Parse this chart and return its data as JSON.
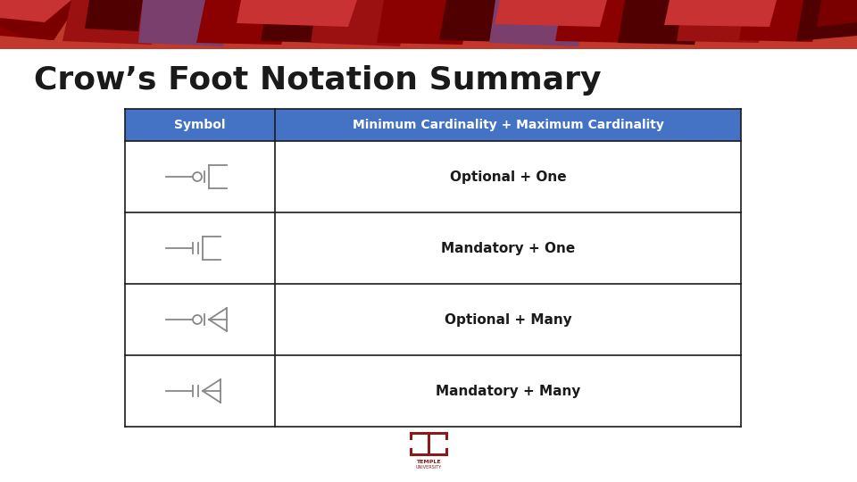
{
  "title": "Crow’s Foot Notation Summary",
  "title_color": "#1a1a1a",
  "title_fontsize": 26,
  "bg_color": "#ffffff",
  "header_bg": "#4472c4",
  "header_text_color": "#ffffff",
  "header_col1": "Symbol",
  "header_col2": "Minimum Cardinality + Maximum Cardinality",
  "rows": [
    "Optional + One",
    "Mandatory + One",
    "Optional + Many",
    "Mandatory + Many"
  ],
  "row_text_color": "#1a1a1a",
  "table_border_color": "#1a1a1a",
  "symbol_line_color": "#888888",
  "temple_logo_color": "#8b1a1a",
  "banner_base": "#c0392b",
  "banner_dark": "#8b0000",
  "banner_darker": "#500000",
  "banner_purple": "#7b3f6e"
}
